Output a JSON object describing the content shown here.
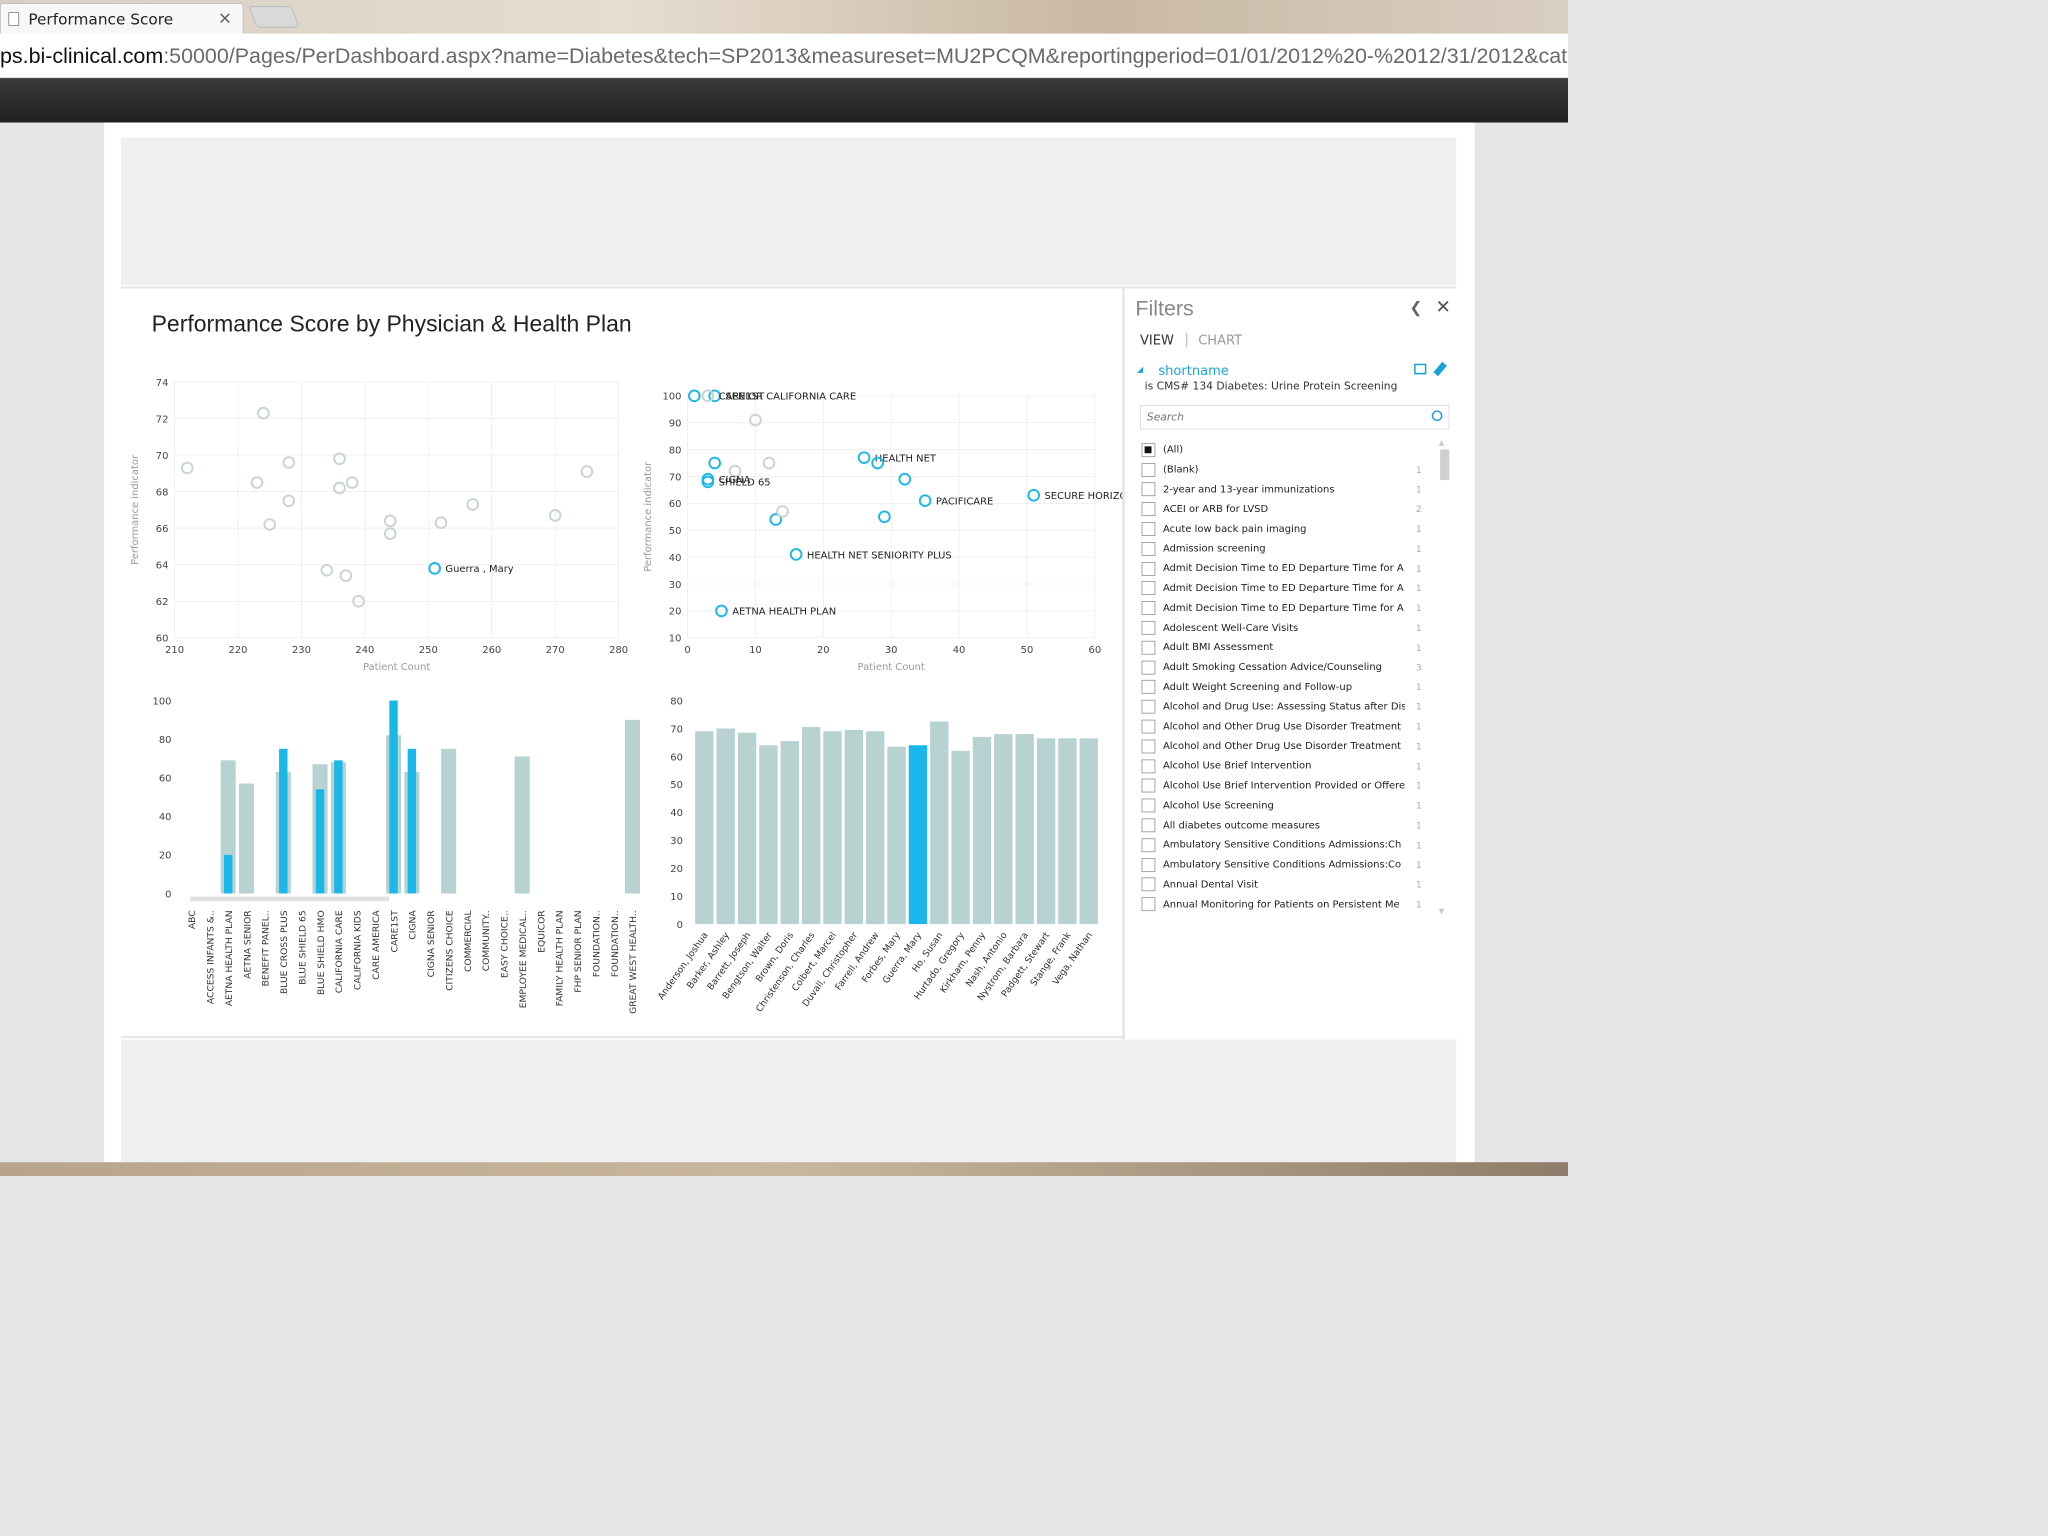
{
  "browser": {
    "tab_title": "Performance Score",
    "tab_close": "×",
    "url_host": "ps.bi-clinical.com",
    "url_rest": ":50000/Pages/PerDashboard.aspx?name=Diabetes&tech=SP2013&measureset=MU2PCQM&reportingperiod=01/01/2012%20-%2012/31/2012&cat"
  },
  "report": {
    "title": "Performance Score by Physician & Health Plan"
  },
  "colors": {
    "accent": "#1ab7ea",
    "faded_bar": "#b8d2d2",
    "grid": "#ececec",
    "axis_text": "#444"
  },
  "filters": {
    "title": "Filters",
    "collapse_icon": "chevron-left-icon",
    "close_icon": "close-icon",
    "view_label": "VIEW",
    "chart_label": "CHART",
    "separator": "|",
    "field_name": "shortname",
    "condition": "is CMS# 134 Diabetes: Urine Protein Screening",
    "search_placeholder": "Search",
    "items": [
      {
        "label": "(All)",
        "count": "",
        "checked": true
      },
      {
        "label": "(Blank)",
        "count": "1",
        "checked": false
      },
      {
        "label": "2-year and 13-year immunizations",
        "count": "1",
        "checked": false
      },
      {
        "label": "ACEI or ARB for LVSD",
        "count": "2",
        "checked": false
      },
      {
        "label": "Acute low back pain imaging",
        "count": "1",
        "checked": false
      },
      {
        "label": "Admission screening",
        "count": "1",
        "checked": false
      },
      {
        "label": "Admit Decision Time to ED Departure Time for A",
        "count": "1",
        "checked": false
      },
      {
        "label": "Admit Decision Time to ED Departure Time for A",
        "count": "1",
        "checked": false
      },
      {
        "label": "Admit Decision Time to ED Departure Time for A",
        "count": "1",
        "checked": false
      },
      {
        "label": "Adolescent Well-Care Visits",
        "count": "1",
        "checked": false
      },
      {
        "label": "Adult BMI Assessment",
        "count": "1",
        "checked": false
      },
      {
        "label": "Adult Smoking Cessation Advice/Counseling",
        "count": "3",
        "checked": false
      },
      {
        "label": "Adult Weight Screening and Follow-up",
        "count": "1",
        "checked": false
      },
      {
        "label": "Alcohol and Drug Use: Assessing Status after Dis",
        "count": "1",
        "checked": false
      },
      {
        "label": "Alcohol and Other Drug Use Disorder Treatment",
        "count": "1",
        "checked": false
      },
      {
        "label": "Alcohol and Other Drug Use Disorder Treatment",
        "count": "1",
        "checked": false
      },
      {
        "label": "Alcohol Use Brief Intervention",
        "count": "1",
        "checked": false
      },
      {
        "label": "Alcohol Use Brief Intervention Provided or Offere",
        "count": "1",
        "checked": false
      },
      {
        "label": "Alcohol Use Screening",
        "count": "1",
        "checked": false
      },
      {
        "label": "All diabetes outcome measures",
        "count": "1",
        "checked": false
      },
      {
        "label": "Ambulatory Sensitive Conditions Admissions:Ch",
        "count": "1",
        "checked": false
      },
      {
        "label": "Ambulatory Sensitive Conditions Admissions:Co",
        "count": "1",
        "checked": false
      },
      {
        "label": "Annual Dental Visit",
        "count": "1",
        "checked": false
      },
      {
        "label": "Annual Monitoring for Patients on Persistent Me",
        "count": "1",
        "checked": false
      }
    ]
  },
  "chart_data": [
    {
      "type": "scatter",
      "title": "",
      "xlabel": "Patient Count",
      "ylabel": "Performance indicator",
      "xlim": [
        210,
        280
      ],
      "ylim": [
        60,
        74
      ],
      "xticks": [
        210,
        220,
        230,
        240,
        250,
        260,
        270,
        280
      ],
      "yticks": [
        60,
        62,
        64,
        66,
        68,
        70,
        72,
        74
      ],
      "points": [
        {
          "x": 212,
          "y": 69.3,
          "label": "",
          "highlight": false
        },
        {
          "x": 224,
          "y": 72.3,
          "label": "",
          "highlight": false
        },
        {
          "x": 223,
          "y": 68.5,
          "label": "",
          "highlight": false
        },
        {
          "x": 225,
          "y": 66.2,
          "label": "",
          "highlight": false
        },
        {
          "x": 228,
          "y": 69.6,
          "label": "",
          "highlight": false
        },
        {
          "x": 228,
          "y": 67.5,
          "label": "",
          "highlight": false
        },
        {
          "x": 234,
          "y": 63.7,
          "label": "",
          "highlight": false
        },
        {
          "x": 236,
          "y": 69.8,
          "label": "",
          "highlight": false
        },
        {
          "x": 236,
          "y": 68.2,
          "label": "",
          "highlight": false
        },
        {
          "x": 238,
          "y": 68.5,
          "label": "",
          "highlight": false
        },
        {
          "x": 237,
          "y": 63.4,
          "label": "",
          "highlight": false
        },
        {
          "x": 239,
          "y": 62.0,
          "label": "",
          "highlight": false
        },
        {
          "x": 244,
          "y": 66.4,
          "label": "",
          "highlight": false
        },
        {
          "x": 244,
          "y": 65.7,
          "label": "",
          "highlight": false
        },
        {
          "x": 251,
          "y": 63.8,
          "label": "Guerra , Mary",
          "highlight": true
        },
        {
          "x": 252,
          "y": 66.3,
          "label": "",
          "highlight": false
        },
        {
          "x": 257,
          "y": 67.3,
          "label": "",
          "highlight": false
        },
        {
          "x": 270,
          "y": 66.7,
          "label": "",
          "highlight": false
        },
        {
          "x": 275,
          "y": 69.1,
          "label": "",
          "highlight": false
        }
      ]
    },
    {
      "type": "scatter",
      "title": "",
      "xlabel": "Patient Count",
      "ylabel": "Performance indicator",
      "xlim": [
        0,
        60
      ],
      "ylim": [
        10,
        100
      ],
      "xticks": [
        0,
        10,
        20,
        30,
        40,
        50,
        60
      ],
      "yticks": [
        10,
        20,
        30,
        40,
        50,
        60,
        70,
        80,
        90,
        100
      ],
      "points": [
        {
          "x": 1,
          "y": 100,
          "label": "",
          "highlight": true
        },
        {
          "x": 4,
          "y": 100,
          "label": "SENIOR CALIFORNIA CARE",
          "highlight": true
        },
        {
          "x": 3,
          "y": 100,
          "label": "CARE1ST",
          "highlight": false
        },
        {
          "x": 10,
          "y": 91,
          "label": "",
          "highlight": false
        },
        {
          "x": 4,
          "y": 75,
          "label": "",
          "highlight": true
        },
        {
          "x": 7,
          "y": 72,
          "label": "",
          "highlight": false
        },
        {
          "x": 12,
          "y": 75,
          "label": "",
          "highlight": false
        },
        {
          "x": 3,
          "y": 69,
          "label": "CIGNA",
          "highlight": true
        },
        {
          "x": 3,
          "y": 68,
          "label": "SHIELD 65",
          "highlight": true
        },
        {
          "x": 13,
          "y": 54,
          "label": "",
          "highlight": true
        },
        {
          "x": 14,
          "y": 57,
          "label": "",
          "highlight": false
        },
        {
          "x": 26,
          "y": 77,
          "label": "HEALTH NET",
          "highlight": true
        },
        {
          "x": 28,
          "y": 75,
          "label": "",
          "highlight": true
        },
        {
          "x": 32,
          "y": 69,
          "label": "",
          "highlight": true
        },
        {
          "x": 29,
          "y": 55,
          "label": "",
          "highlight": true
        },
        {
          "x": 35,
          "y": 61,
          "label": "PACIFICARE",
          "highlight": true
        },
        {
          "x": 51,
          "y": 63,
          "label": "SECURE HORIZONS",
          "highlight": true
        },
        {
          "x": 16,
          "y": 41,
          "label": "HEALTH NET SENIORITY PLUS",
          "highlight": true
        },
        {
          "x": 5,
          "y": 20,
          "label": "AETNA HEALTH PLAN",
          "highlight": true
        }
      ]
    },
    {
      "type": "bar",
      "title": "",
      "xlabel": "",
      "ylabel": "",
      "ylim": [
        0,
        100
      ],
      "yticks": [
        0,
        20,
        40,
        60,
        80,
        100
      ],
      "categories": [
        "ABC",
        "ACCESS INFANTS &..",
        "AETNA HEALTH PLAN",
        "AETNA SENIOR",
        "BENEFIT PANEL..",
        "BLUE CROSS PLUS",
        "BLUE SHIELD 65",
        "BLUE SHIELD HMO",
        "CALIFORNIA CARE",
        "CALIFORNIA KIDS",
        "CARE AMERICA",
        "CARE1ST",
        "CIGNA",
        "CIGNA SENIOR",
        "CITIZENS CHOICE",
        "COMMERCIAL",
        "COMMUNITY..",
        "EASY CHOICE..",
        "EMPLOYEE MEDICAL..",
        "EQUICOR",
        "FAMILY HEALTH PLAN",
        "FHP SENIOR PLAN",
        "FOUNDATION..",
        "FOUNDATION..",
        "GREAT WEST HEALTH.."
      ],
      "series": [
        {
          "name": "",
          "values": [
            0,
            0,
            69,
            57,
            0,
            63,
            0,
            67,
            68,
            0,
            0,
            82,
            63,
            0,
            75,
            0,
            0,
            0,
            71,
            0,
            0,
            0,
            0,
            0,
            90
          ]
        },
        {
          "name": "",
          "values": [
            0,
            0,
            20,
            0,
            0,
            75,
            0,
            54,
            69,
            0,
            0,
            100,
            75,
            0,
            0,
            0,
            0,
            0,
            0,
            0,
            0,
            0,
            0,
            0,
            0
          ]
        }
      ]
    },
    {
      "type": "bar",
      "title": "",
      "xlabel": "",
      "ylabel": "",
      "ylim": [
        0,
        80
      ],
      "yticks": [
        0,
        10,
        20,
        30,
        40,
        50,
        60,
        70,
        80
      ],
      "categories": [
        "Anderson, Joshua",
        "Barker, Ashley",
        "Barrett, Joseph",
        "Bengtson, Walter",
        "Brown, Doris",
        "Christenson, Charles",
        "Colbert, Marcel",
        "Duvall, Christopher",
        "Farrell, Andrew",
        "Forbes, Mary",
        "Guerra, Mary",
        "Ho, Susan",
        "Hurtado, Gregory",
        "Kirkham, Penny",
        "Nash, Antonio",
        "Nystrom, Barbara",
        "Padgett, Stewart",
        "Stange, Frank",
        "Vega, Nathan"
      ],
      "values": [
        69,
        70,
        68.5,
        64,
        65.5,
        70.5,
        69,
        69.5,
        69,
        63.5,
        64,
        72.5,
        62,
        67,
        68,
        68,
        66.5,
        66.5,
        66.5
      ],
      "highlight_index": 10
    }
  ]
}
